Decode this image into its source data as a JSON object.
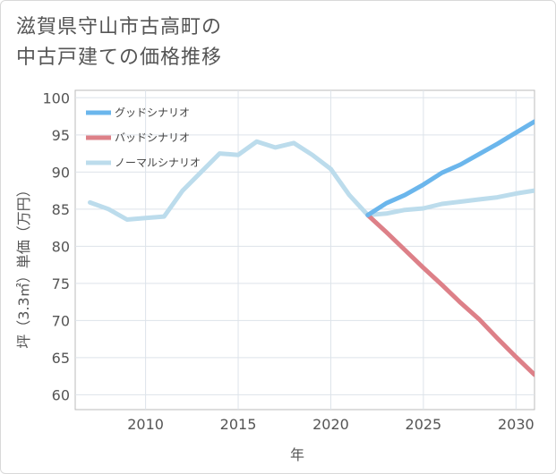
{
  "chart_data": {
    "type": "line",
    "title_line1": "滋賀県守山市古高町の",
    "title_line2": "中古戸建ての価格推移",
    "xlabel": "年",
    "ylabel": "坪（3.3㎡）単価（万円）",
    "xlim": [
      2006.2,
      2031
    ],
    "ylim": [
      58,
      101
    ],
    "xticks": [
      2010,
      2015,
      2020,
      2025,
      2030
    ],
    "yticks": [
      60,
      65,
      70,
      75,
      80,
      85,
      90,
      95,
      100
    ],
    "grid": true,
    "legend_position": "top-left",
    "series": [
      {
        "name": "グッドシナリオ",
        "color": "#6bb6ec",
        "x": [
          2022,
          2023,
          2024,
          2025,
          2026,
          2027,
          2028,
          2029,
          2030,
          2031
        ],
        "y": [
          84.2,
          85.8,
          86.9,
          88.3,
          89.9,
          91.0,
          92.4,
          93.8,
          95.3,
          96.8
        ]
      },
      {
        "name": "バッドシナリオ",
        "color": "#dd8088",
        "x": [
          2022,
          2023,
          2024,
          2025,
          2026,
          2027,
          2028,
          2029,
          2030,
          2031
        ],
        "y": [
          84.2,
          81.9,
          79.5,
          77.1,
          74.8,
          72.4,
          70.2,
          67.6,
          65.1,
          62.7
        ]
      },
      {
        "name": "ノーマルシナリオ",
        "color": "#bcdcec",
        "x": [
          2007,
          2008,
          2009,
          2010,
          2011,
          2012,
          2013,
          2014,
          2015,
          2016,
          2017,
          2018,
          2019,
          2020,
          2021,
          2022,
          2023,
          2024,
          2025,
          2026,
          2027,
          2028,
          2029,
          2030,
          2031
        ],
        "y": [
          85.9,
          85.0,
          83.6,
          83.8,
          84.0,
          87.5,
          90.0,
          92.5,
          92.3,
          94.1,
          93.3,
          93.9,
          92.3,
          90.4,
          86.9,
          84.2,
          84.4,
          84.9,
          85.1,
          85.7,
          86.0,
          86.3,
          86.6,
          87.1,
          87.5
        ]
      }
    ]
  }
}
